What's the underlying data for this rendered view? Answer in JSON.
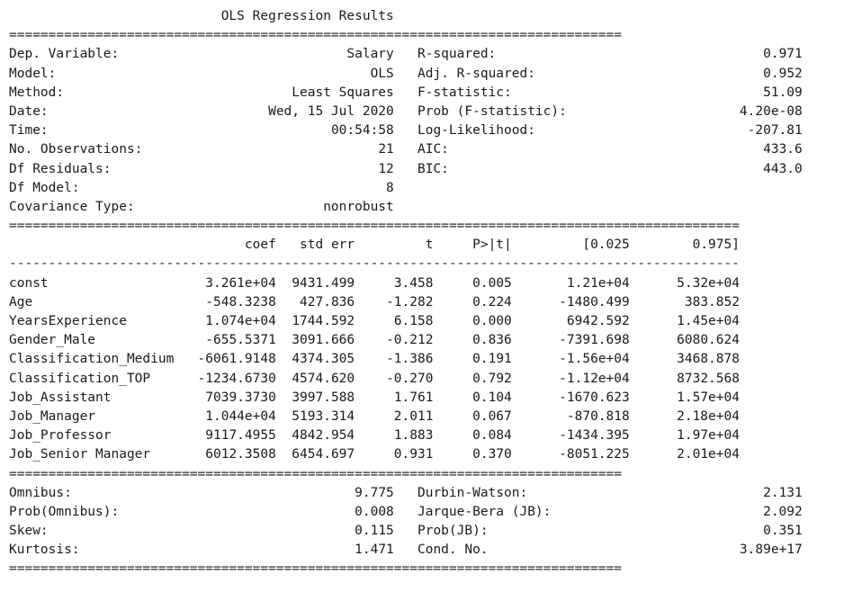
{
  "title": "OLS Regression Results",
  "separators": {
    "double_short": "==============================================================================",
    "double_long": "=============================================================================================",
    "dash_long": "---------------------------------------------------------------------------------------------"
  },
  "summary": {
    "left": [
      {
        "label": "Dep. Variable:",
        "value": "Salary"
      },
      {
        "label": "Model:",
        "value": "OLS"
      },
      {
        "label": "Method:",
        "value": "Least Squares"
      },
      {
        "label": "Date:",
        "value": "Wed, 15 Jul 2020"
      },
      {
        "label": "Time:",
        "value": "00:54:58"
      },
      {
        "label": "No. Observations:",
        "value": "21"
      },
      {
        "label": "Df Residuals:",
        "value": "12"
      },
      {
        "label": "Df Model:",
        "value": "8"
      },
      {
        "label": "Covariance Type:",
        "value": "nonrobust"
      }
    ],
    "right": [
      {
        "label": "R-squared:",
        "value": "0.971"
      },
      {
        "label": "Adj. R-squared:",
        "value": "0.952"
      },
      {
        "label": "F-statistic:",
        "value": "51.09"
      },
      {
        "label": "Prob (F-statistic):",
        "value": "4.20e-08"
      },
      {
        "label": "Log-Likelihood:",
        "value": "-207.81"
      },
      {
        "label": "AIC:",
        "value": "433.6"
      },
      {
        "label": "BIC:",
        "value": "443.0"
      }
    ]
  },
  "coef_table": {
    "headers": [
      "coef",
      "std err",
      "t",
      "P>|t|",
      "[0.025",
      "0.975]"
    ],
    "rows": [
      {
        "name": "const",
        "cells": [
          "3.261e+04",
          "9431.499",
          "3.458",
          "0.005",
          "1.21e+04",
          "5.32e+04"
        ]
      },
      {
        "name": "Age",
        "cells": [
          "-548.3238",
          "427.836",
          "-1.282",
          "0.224",
          "-1480.499",
          "383.852"
        ]
      },
      {
        "name": "YearsExperience",
        "cells": [
          "1.074e+04",
          "1744.592",
          "6.158",
          "0.000",
          "6942.592",
          "1.45e+04"
        ]
      },
      {
        "name": "Gender_Male",
        "cells": [
          "-655.5371",
          "3091.666",
          "-0.212",
          "0.836",
          "-7391.698",
          "6080.624"
        ]
      },
      {
        "name": "Classification_Medium",
        "cells": [
          "-6061.9148",
          "4374.305",
          "-1.386",
          "0.191",
          "-1.56e+04",
          "3468.878"
        ]
      },
      {
        "name": "Classification_TOP",
        "cells": [
          "-1234.6730",
          "4574.620",
          "-0.270",
          "0.792",
          "-1.12e+04",
          "8732.568"
        ]
      },
      {
        "name": "Job_Assistant",
        "cells": [
          "7039.3730",
          "3997.588",
          "1.761",
          "0.104",
          "-1670.623",
          "1.57e+04"
        ]
      },
      {
        "name": "Job_Manager",
        "cells": [
          "1.044e+04",
          "5193.314",
          "2.011",
          "0.067",
          "-870.818",
          "2.18e+04"
        ]
      },
      {
        "name": "Job_Professor",
        "cells": [
          "9117.4955",
          "4842.954",
          "1.883",
          "0.084",
          "-1434.395",
          "1.97e+04"
        ]
      },
      {
        "name": "Job_Senior Manager",
        "cells": [
          "6012.3508",
          "6454.697",
          "0.931",
          "0.370",
          "-8051.225",
          "2.01e+04"
        ]
      }
    ]
  },
  "diagnostics": {
    "left": [
      {
        "label": "Omnibus:",
        "value": "9.775"
      },
      {
        "label": "Prob(Omnibus):",
        "value": "0.008"
      },
      {
        "label": "Skew:",
        "value": "0.115"
      },
      {
        "label": "Kurtosis:",
        "value": "1.471"
      }
    ],
    "right": [
      {
        "label": "Durbin-Watson:",
        "value": "2.131"
      },
      {
        "label": "Jarque-Bera (JB):",
        "value": "2.092"
      },
      {
        "label": "Prob(JB):",
        "value": "0.351"
      },
      {
        "label": "Cond. No.",
        "value": "3.89e+17"
      }
    ]
  }
}
